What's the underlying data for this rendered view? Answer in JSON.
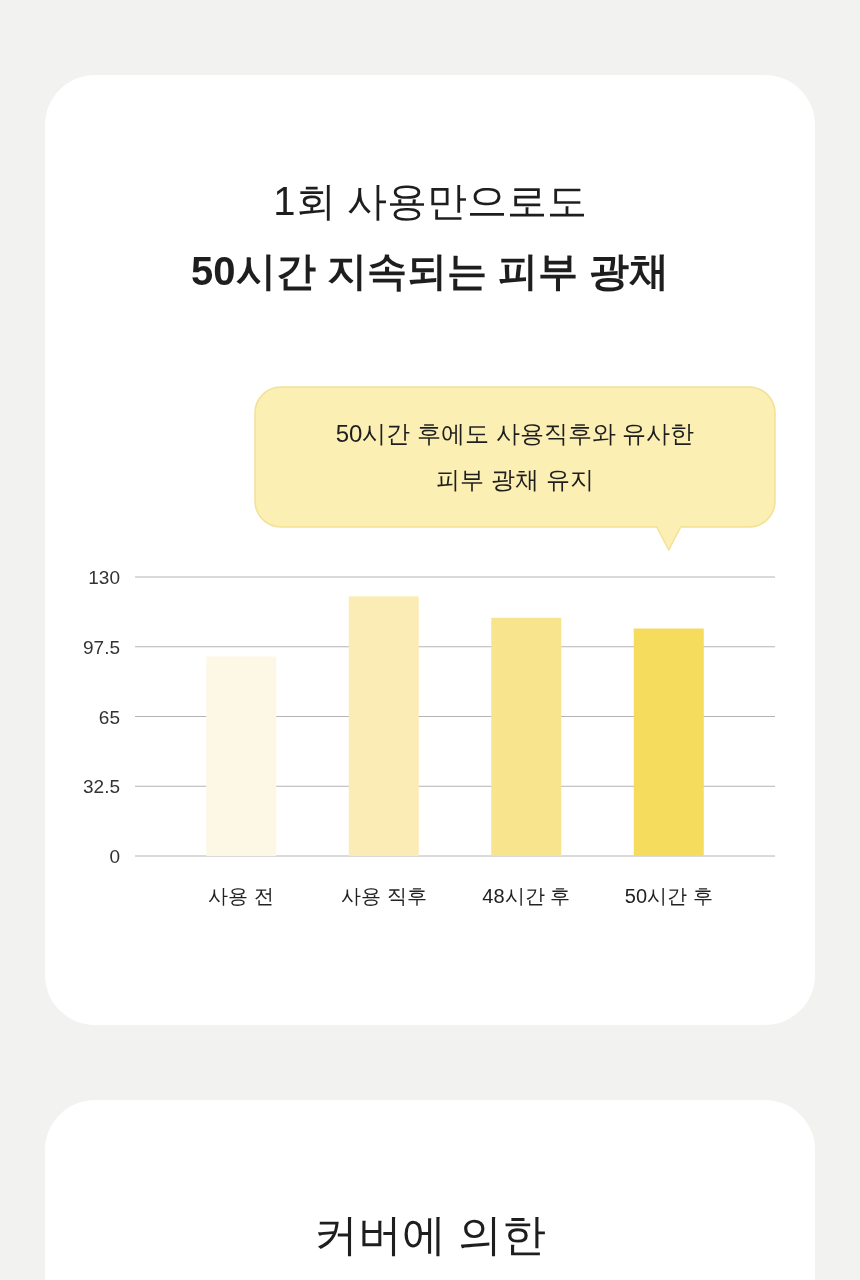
{
  "chart_data": [
    {
      "type": "bar",
      "title": "1회 사용만으로도",
      "subtitle": "50시간 지속되는 피부 광채",
      "categories": [
        "사용 전",
        "사용 직후",
        "48시간 후",
        "50시간 후"
      ],
      "values": [
        93,
        121,
        111,
        106
      ],
      "colors": [
        "#fdf8e6",
        "#fbecb5",
        "#f8e48d",
        "#f5dc5c"
      ],
      "ylim": [
        0,
        130
      ],
      "yticks": [
        0,
        32.5,
        65,
        97.5,
        130
      ],
      "grid": "y",
      "annotations": [
        "50시간 후에도 사용직후와 유사한 피부 광채 유지"
      ]
    },
    {
      "type": "other",
      "title": "커버에 의한"
    }
  ]
}
